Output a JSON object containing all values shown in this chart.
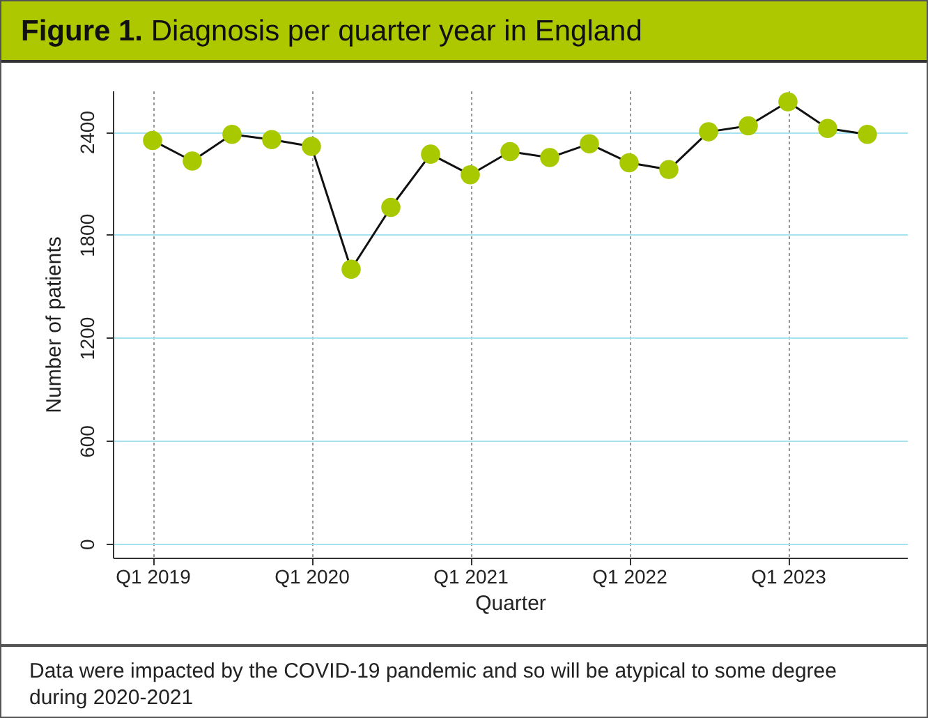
{
  "chart_data": {
    "type": "line",
    "title": "Figure 1. Diagnosis per quarter year in England",
    "xlabel": "Quarter",
    "ylabel": "Number of patients",
    "categories": [
      "Q1 2019",
      null,
      null,
      null,
      "Q1 2020",
      null,
      null,
      null,
      "Q1 2021",
      null,
      null,
      null,
      "Q1 2022",
      null,
      null,
      null,
      "Q1 2023",
      null,
      null
    ],
    "series": [
      {
        "color": "#a8c800",
        "values": [
          2350,
          2230,
          2385,
          2355,
          2315,
          1600,
          1960,
          2270,
          2150,
          2285,
          2250,
          2330,
          2220,
          2180,
          2400,
          2435,
          2575,
          2420,
          2385
        ]
      }
    ],
    "ylim": [
      -80,
      2640
    ],
    "yticks": [
      0,
      600,
      1200,
      1800,
      2400
    ],
    "grid": true,
    "marker": "circle",
    "line_style": "solid",
    "annotations": [
      "Data were impacted by the COVID-19 pandemic and so will be atypical to some degree during 2020-2021"
    ]
  }
}
